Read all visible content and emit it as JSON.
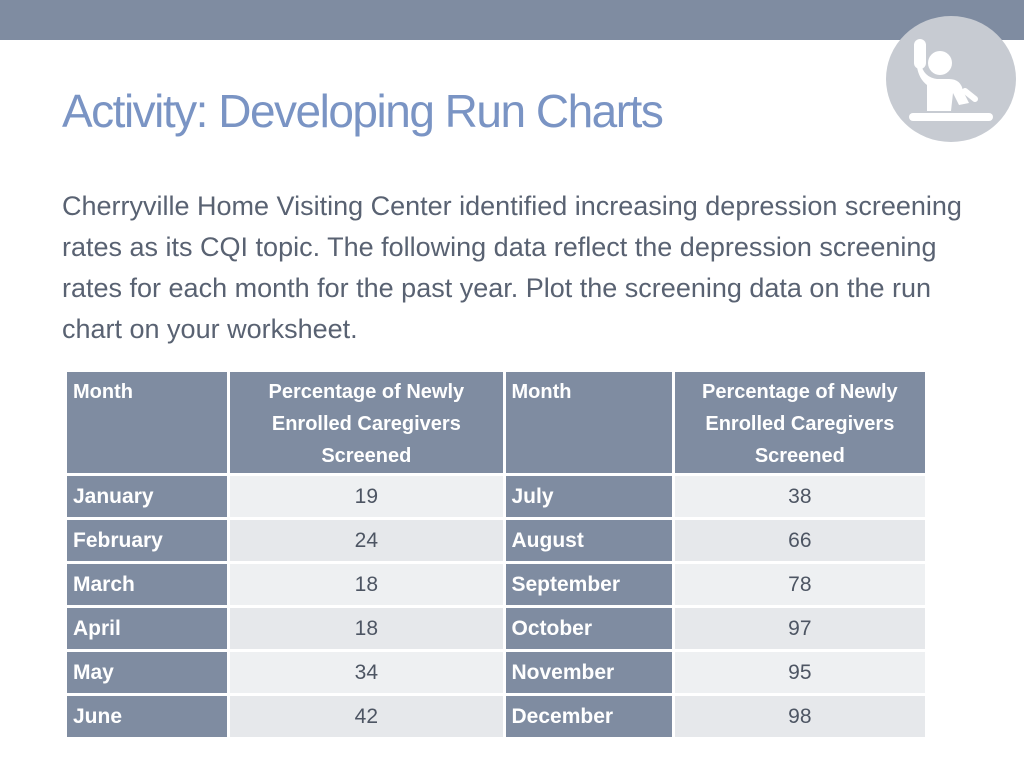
{
  "slide": {
    "title": "Activity: Developing Run Charts",
    "body": "Cherryville Home Visiting Center identified increasing depression screening rates as its CQI topic. The following data reflect the depression screening rates for each month for the past year. Plot the screening data on the run chart on your worksheet."
  },
  "table": {
    "headers": [
      "Month",
      "Percentage of Newly Enrolled Caregivers Screened",
      "Month",
      "Percentage of Newly Enrolled Caregivers Screened"
    ],
    "rows": [
      {
        "month_a": "January",
        "value_a": "19",
        "month_b": "July",
        "value_b": "38"
      },
      {
        "month_a": "February",
        "value_a": "24",
        "month_b": "August",
        "value_b": "66"
      },
      {
        "month_a": "March",
        "value_a": "18",
        "month_b": "September",
        "value_b": "78"
      },
      {
        "month_a": "April",
        "value_a": "18",
        "month_b": "October",
        "value_b": "97"
      },
      {
        "month_a": "May",
        "value_a": "34",
        "month_b": "November",
        "value_b": "95"
      },
      {
        "month_a": "June",
        "value_a": "42",
        "month_b": "December",
        "value_b": "98"
      }
    ]
  },
  "colors": {
    "accent": "#7f8ca1",
    "title": "#7a94c4",
    "body_text": "#596272",
    "cell_fill": "#e6e8eb",
    "badge": "#c7cbd2"
  },
  "icons": {
    "badge": "person-raising-hand-icon"
  }
}
